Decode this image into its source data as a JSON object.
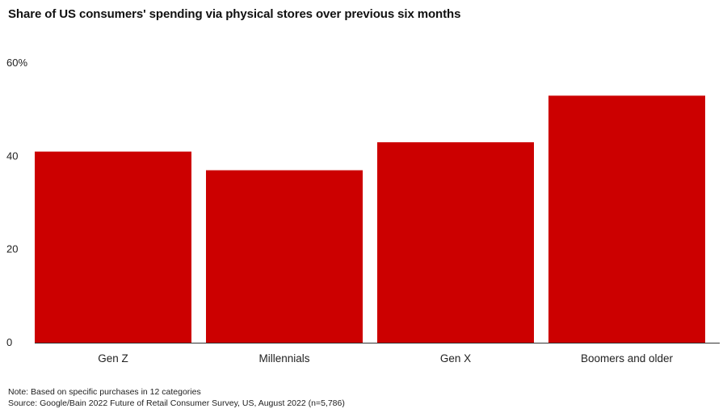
{
  "chart_data": {
    "type": "bar",
    "title": "Share of US consumers' spending via physical stores over previous six months",
    "categories": [
      "Gen Z",
      "Millennials",
      "Gen X",
      "Boomers and older"
    ],
    "values": [
      41,
      37,
      43,
      53
    ],
    "y_ticks": [
      "0",
      "20",
      "40",
      "60%"
    ],
    "y_tick_values": [
      0,
      20,
      40,
      60
    ],
    "ylim": [
      0,
      60
    ],
    "grid": false,
    "legend": "none",
    "bar_color": "#cc0000",
    "note": "Note: Based on specific purchases in 12 categories",
    "source": "Source: Google/Bain 2022 Future of Retail Consumer Survey, US, August 2022 (n=5,786)"
  }
}
